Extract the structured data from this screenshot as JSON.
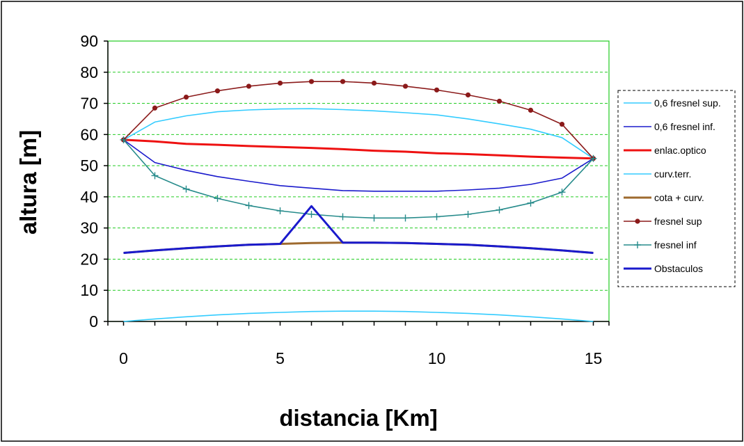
{
  "chart_data": {
    "type": "line",
    "title": "",
    "xlabel": "distancia [Km]",
    "ylabel": "altura [m]",
    "xlim": [
      -0.5,
      15.5
    ],
    "ylim": [
      0,
      90
    ],
    "x_ticks": [
      0,
      5,
      10,
      15
    ],
    "y_ticks": [
      0,
      10,
      20,
      30,
      40,
      50,
      60,
      70,
      80,
      90
    ],
    "grid": "horizontal dashed",
    "legend_position": "right",
    "series": [
      {
        "name": "0,6 fresnel sup.",
        "color": "#33ccff",
        "marker": "none",
        "width": 1.6,
        "x": [
          0,
          1,
          2,
          3,
          4,
          5,
          6,
          7,
          8,
          9,
          10,
          11,
          12,
          13,
          14,
          15
        ],
        "y": [
          58.3,
          64.0,
          66.0,
          67.3,
          67.9,
          68.2,
          68.3,
          68.0,
          67.6,
          67.0,
          66.3,
          65.0,
          63.4,
          61.7,
          59.0,
          52.3
        ]
      },
      {
        "name": "0,6 fresnel inf.",
        "color": "#1a1acc",
        "marker": "none",
        "width": 1.6,
        "x": [
          0,
          1,
          2,
          3,
          4,
          5,
          6,
          7,
          8,
          9,
          10,
          11,
          12,
          13,
          14,
          15
        ],
        "y": [
          58.3,
          51.0,
          48.5,
          46.5,
          45.0,
          43.6,
          42.8,
          42.0,
          41.8,
          41.8,
          41.8,
          42.2,
          42.8,
          44.0,
          46.0,
          52.3
        ]
      },
      {
        "name": "enlac.optico",
        "color": "#ee1111",
        "marker": "none",
        "width": 3,
        "x": [
          0,
          1,
          2,
          3,
          4,
          5,
          6,
          7,
          8,
          9,
          10,
          11,
          12,
          13,
          14,
          15
        ],
        "y": [
          58.3,
          57.8,
          57.0,
          56.7,
          56.3,
          56.0,
          55.7,
          55.3,
          54.8,
          54.5,
          54.0,
          53.7,
          53.3,
          52.9,
          52.6,
          52.3
        ]
      },
      {
        "name": "curv.terr.",
        "color": "#33ccff",
        "marker": "none",
        "width": 1.6,
        "x": [
          0,
          1,
          2,
          3,
          4,
          5,
          6,
          7,
          8,
          9,
          10,
          11,
          12,
          13,
          14,
          15
        ],
        "y": [
          0,
          0.8,
          1.5,
          2.1,
          2.6,
          2.9,
          3.2,
          3.3,
          3.3,
          3.2,
          2.9,
          2.6,
          2.1,
          1.5,
          0.8,
          0
        ]
      },
      {
        "name": "cota + curv.",
        "color": "#9e6a2e",
        "marker": "none",
        "width": 3,
        "x": [
          0,
          1,
          2,
          3,
          4,
          5,
          6,
          7,
          8,
          9,
          10,
          11,
          12,
          13,
          14,
          15
        ],
        "y": [
          22.0,
          22.8,
          23.5,
          24.1,
          24.6,
          24.9,
          25.2,
          25.3,
          25.3,
          25.2,
          24.9,
          24.6,
          24.1,
          23.5,
          22.8,
          22.0
        ]
      },
      {
        "name": "fresnel sup",
        "color": "#8b1a1a",
        "marker": "dot",
        "width": 1.6,
        "x": [
          0,
          1,
          2,
          3,
          4,
          5,
          6,
          7,
          8,
          9,
          10,
          11,
          12,
          13,
          14,
          15
        ],
        "y": [
          58.3,
          68.5,
          72.0,
          74.0,
          75.5,
          76.5,
          77.0,
          77.0,
          76.5,
          75.5,
          74.3,
          72.7,
          70.7,
          67.8,
          63.3,
          52.3
        ]
      },
      {
        "name": "fresnel inf",
        "color": "#268b8b",
        "marker": "plus",
        "width": 1.6,
        "x": [
          0,
          1,
          2,
          3,
          4,
          5,
          6,
          7,
          8,
          9,
          10,
          11,
          12,
          13,
          14,
          15
        ],
        "y": [
          58.3,
          46.8,
          42.5,
          39.5,
          37.2,
          35.5,
          34.4,
          33.6,
          33.2,
          33.2,
          33.6,
          34.4,
          35.8,
          38.0,
          41.5,
          52.3
        ]
      },
      {
        "name": "Obstaculos",
        "color": "#1a1acc",
        "marker": "none",
        "width": 3,
        "x": [
          0,
          1,
          2,
          3,
          4,
          5,
          6,
          7,
          8,
          9,
          10,
          11,
          12,
          13,
          14,
          15
        ],
        "y": [
          22.0,
          22.8,
          23.5,
          24.1,
          24.6,
          24.9,
          37.0,
          25.3,
          25.3,
          25.2,
          24.9,
          24.6,
          24.1,
          23.5,
          22.8,
          22.0
        ]
      }
    ]
  }
}
